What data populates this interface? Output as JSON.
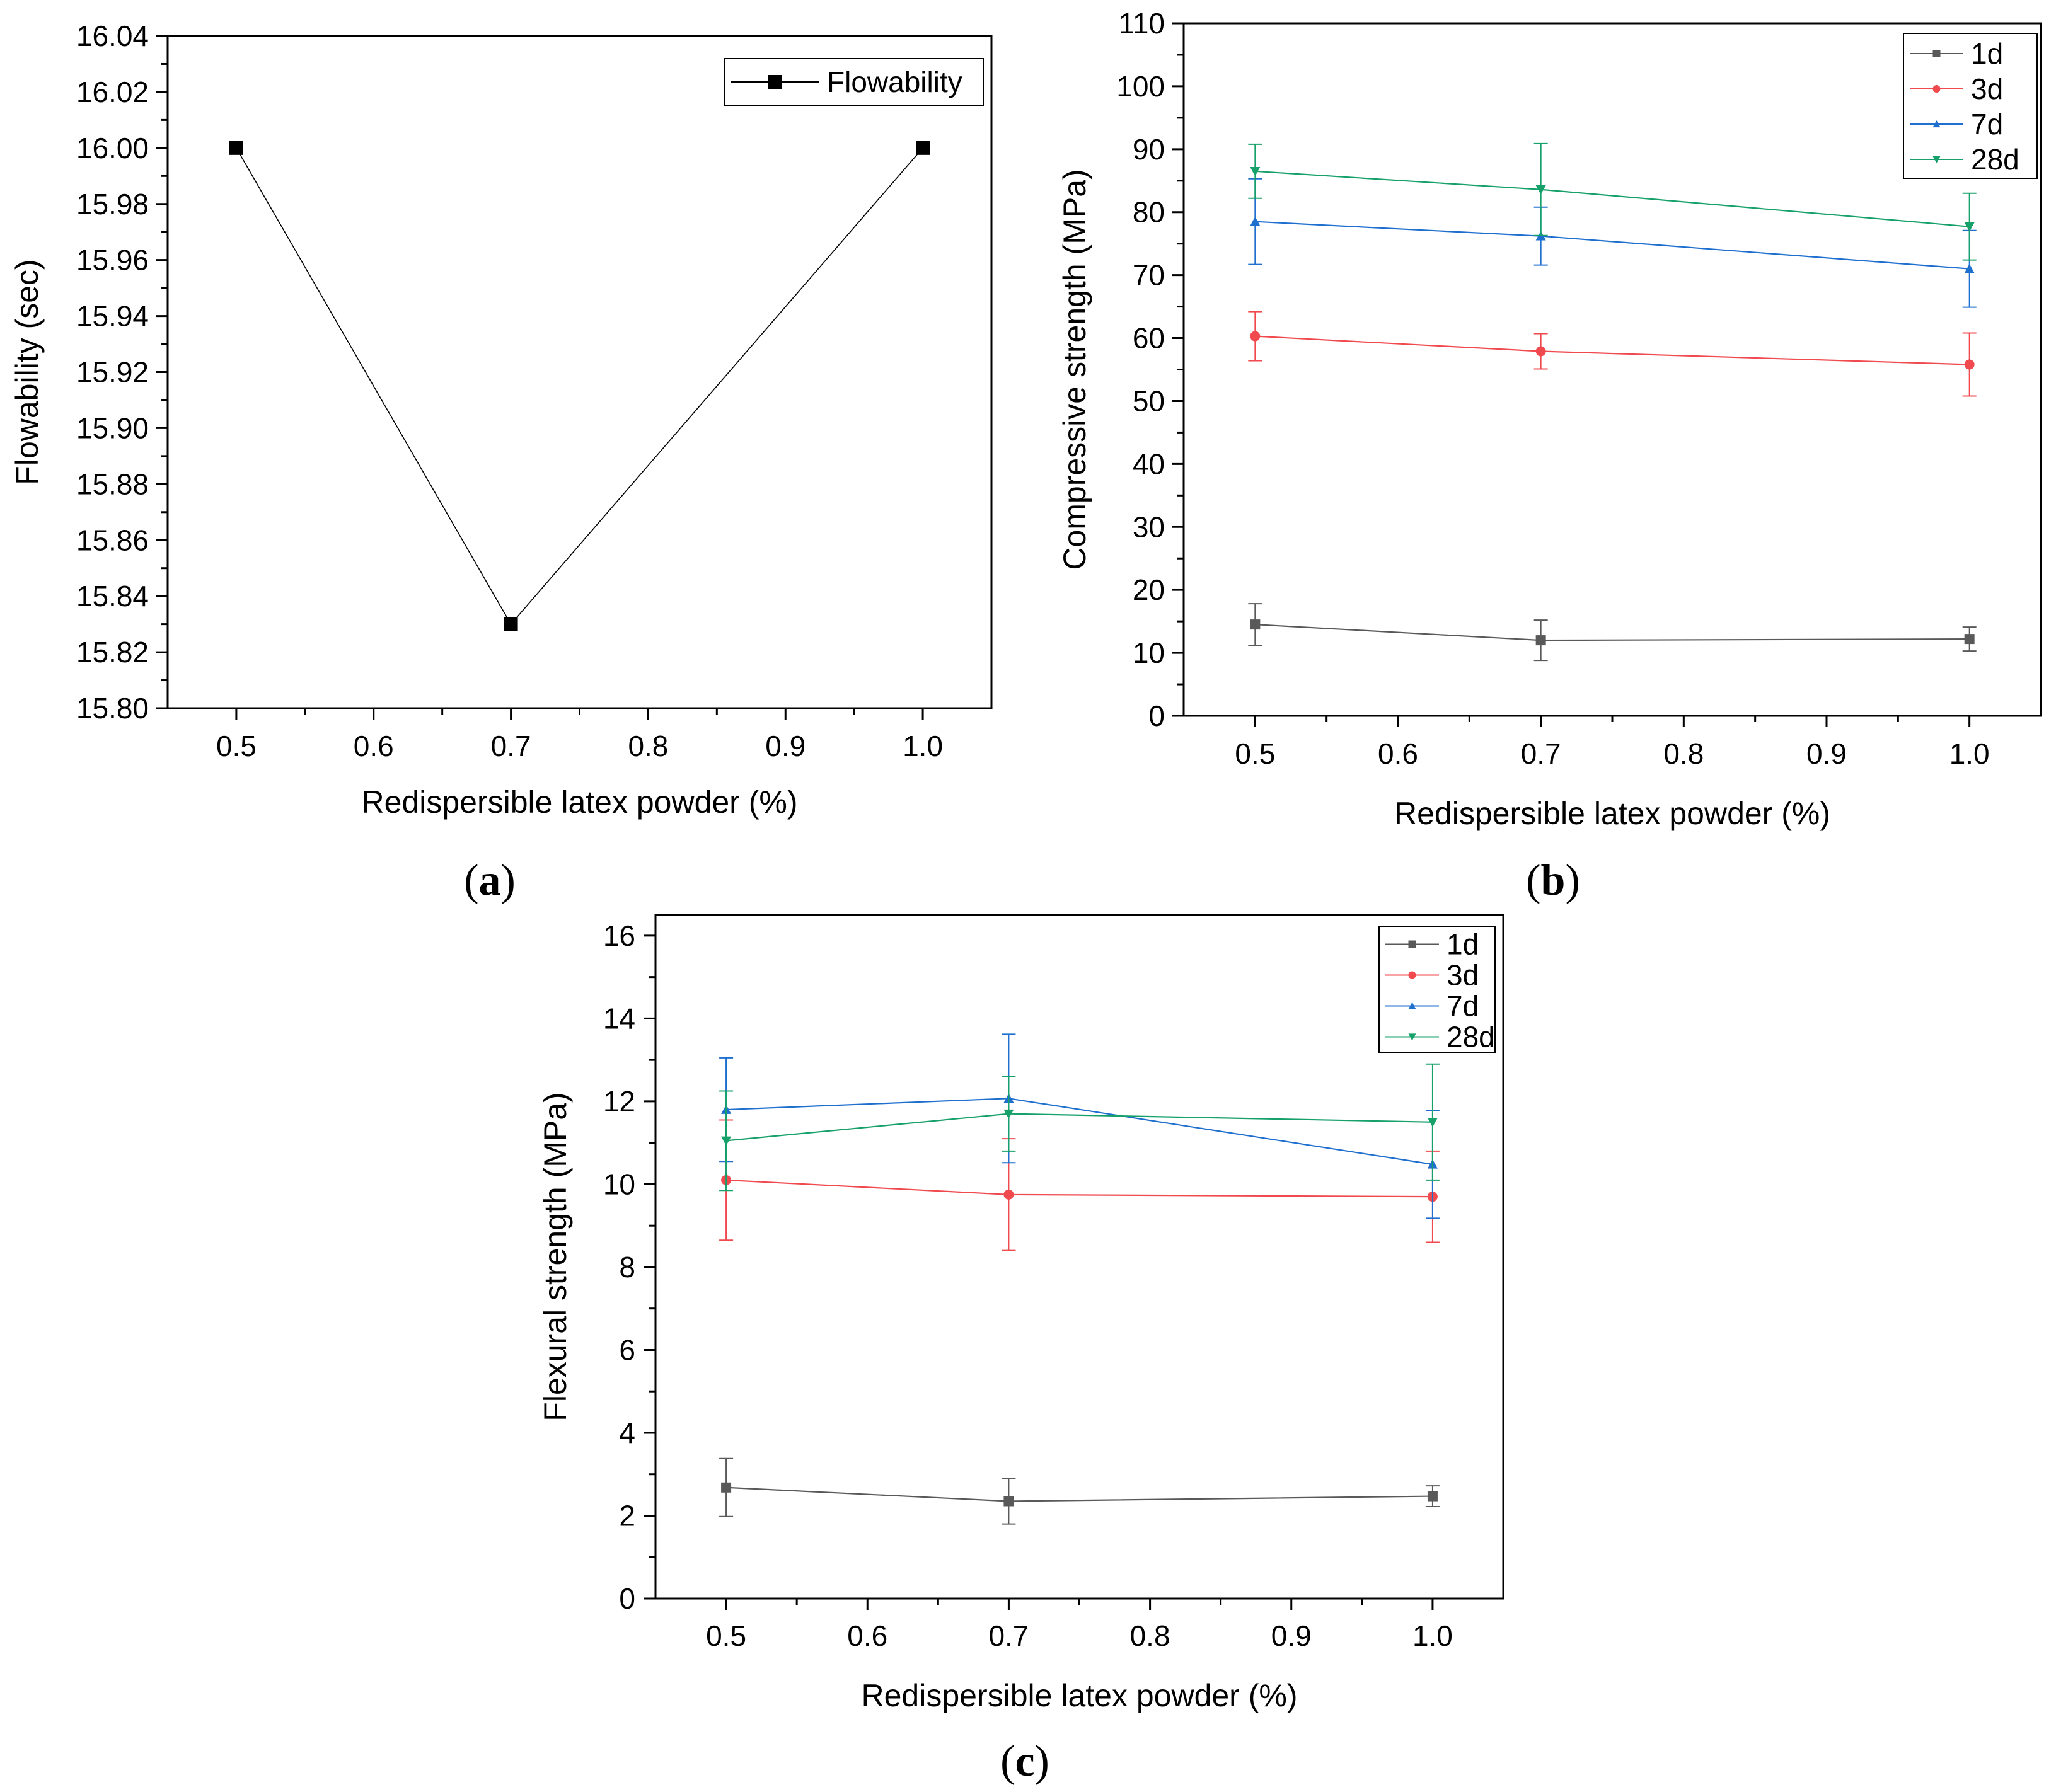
{
  "figure": {
    "captions": {
      "a": {
        "open": "(",
        "letter": "a",
        "close": ")"
      },
      "b": {
        "open": "(",
        "letter": "b",
        "close": ")"
      },
      "c": {
        "open": "(",
        "letter": "c",
        "close": ")"
      }
    }
  },
  "chart_data": [
    {
      "id": "a",
      "type": "line",
      "title": "",
      "xlabel": "Redispersible latex powder (%)",
      "ylabel": "Flowability (sec)",
      "xlim": [
        0.45,
        1.05
      ],
      "ylim": [
        15.8,
        16.04
      ],
      "xticks": [
        "0.5",
        "0.6",
        "0.7",
        "0.8",
        "0.9",
        "1.0"
      ],
      "xtick_values": [
        0.5,
        0.6,
        0.7,
        0.8,
        0.9,
        1.0
      ],
      "yticks": [
        "15.80",
        "15.82",
        "15.84",
        "15.86",
        "15.88",
        "15.90",
        "15.92",
        "15.94",
        "15.96",
        "15.98",
        "16.00",
        "16.02",
        "16.04"
      ],
      "ytick_values": [
        15.8,
        15.82,
        15.84,
        15.86,
        15.88,
        15.9,
        15.92,
        15.94,
        15.96,
        15.98,
        16.0,
        16.02,
        16.04
      ],
      "x": [
        0.5,
        0.7,
        1.0
      ],
      "series": [
        {
          "name": "Flowability",
          "color": "#000000",
          "marker": "square",
          "values": [
            16.0,
            15.83,
            16.0
          ]
        }
      ],
      "legend": "top-right"
    },
    {
      "id": "b",
      "type": "line",
      "title": "",
      "xlabel": "Redispersible latex powder (%)",
      "ylabel": "Compressive strength (MPa)",
      "xlim": [
        0.45,
        1.05
      ],
      "ylim": [
        0,
        110
      ],
      "xticks": [
        "0.5",
        "0.6",
        "0.7",
        "0.8",
        "0.9",
        "1.0"
      ],
      "xtick_values": [
        0.5,
        0.6,
        0.7,
        0.8,
        0.9,
        1.0
      ],
      "yticks": [
        "0",
        "10",
        "20",
        "30",
        "40",
        "50",
        "60",
        "70",
        "80",
        "90",
        "100",
        "110"
      ],
      "ytick_values": [
        0,
        10,
        20,
        30,
        40,
        50,
        60,
        70,
        80,
        90,
        100,
        110
      ],
      "x": [
        0.5,
        0.7,
        1.0
      ],
      "series": [
        {
          "name": "1d",
          "color": "#595959",
          "marker": "square",
          "values": [
            14.5,
            12.0,
            12.2
          ],
          "errors": [
            3.3,
            3.2,
            1.9
          ]
        },
        {
          "name": "3d",
          "color": "#f0494e",
          "marker": "circle",
          "values": [
            60.3,
            57.9,
            55.8
          ],
          "errors": [
            3.9,
            2.8,
            5.0
          ]
        },
        {
          "name": "7d",
          "color": "#1f6fcf",
          "marker": "triangle-up",
          "values": [
            78.5,
            76.2,
            71.0
          ],
          "errors": [
            6.8,
            4.6,
            6.1
          ]
        },
        {
          "name": "28d",
          "color": "#16a06a",
          "marker": "triangle-down",
          "values": [
            86.5,
            83.6,
            77.7
          ],
          "errors": [
            4.3,
            7.3,
            5.3
          ]
        }
      ],
      "legend": "top-right"
    },
    {
      "id": "c",
      "type": "line",
      "title": "",
      "xlabel": "Redispersible latex powder (%)",
      "ylabel": "Flexural strength (MPa)",
      "xlim": [
        0.45,
        1.05
      ],
      "ylim": [
        0,
        16.5
      ],
      "xticks": [
        "0.5",
        "0.6",
        "0.7",
        "0.8",
        "0.9",
        "1.0"
      ],
      "xtick_values": [
        0.5,
        0.6,
        0.7,
        0.8,
        0.9,
        1.0
      ],
      "yticks": [
        "0",
        "2",
        "4",
        "6",
        "8",
        "10",
        "12",
        "14",
        "16"
      ],
      "ytick_values": [
        0,
        2,
        4,
        6,
        8,
        10,
        12,
        14,
        16
      ],
      "x": [
        0.5,
        0.7,
        1.0
      ],
      "series": [
        {
          "name": "1d",
          "color": "#595959",
          "marker": "square",
          "values": [
            2.68,
            2.35,
            2.47
          ],
          "errors": [
            0.7,
            0.55,
            0.25
          ]
        },
        {
          "name": "3d",
          "color": "#f0494e",
          "marker": "circle",
          "values": [
            10.1,
            9.75,
            9.7
          ],
          "errors": [
            1.45,
            1.35,
            1.1
          ]
        },
        {
          "name": "7d",
          "color": "#1f6fcf",
          "marker": "triangle-up",
          "values": [
            11.8,
            12.07,
            10.48
          ],
          "errors": [
            1.25,
            1.55,
            1.3
          ]
        },
        {
          "name": "28d",
          "color": "#16a06a",
          "marker": "triangle-down",
          "values": [
            11.05,
            11.7,
            11.5
          ],
          "errors": [
            1.2,
            0.9,
            1.4
          ]
        }
      ],
      "legend": "top-right"
    }
  ]
}
